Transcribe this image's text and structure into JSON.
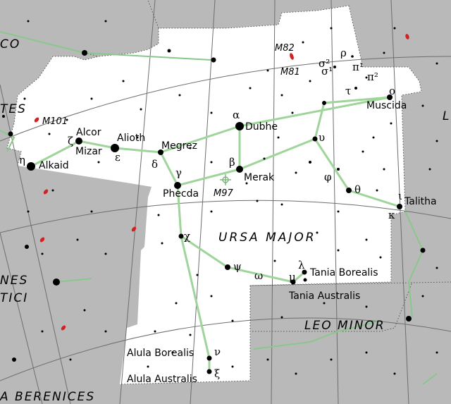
{
  "constellation": {
    "name": "URSA MAJOR"
  },
  "neighbors": [
    {
      "name": "LEO MINOR"
    },
    {
      "name": "CO"
    },
    {
      "name": "TES"
    },
    {
      "name": "NES"
    },
    {
      "name": "TICI"
    },
    {
      "name": "A BERENICES"
    },
    {
      "name": "L"
    }
  ],
  "stars": [
    {
      "name": "Dubhe",
      "greek": "α"
    },
    {
      "name": "Merak",
      "greek": "β"
    },
    {
      "name": "Phecda",
      "greek": "γ"
    },
    {
      "name": "Megrez",
      "greek": "δ"
    },
    {
      "name": "Alioth",
      "greek": "ε"
    },
    {
      "name": "Mizar",
      "greek": "ζ"
    },
    {
      "name": "Alcor",
      "greek": ""
    },
    {
      "name": "Alkaid",
      "greek": "η"
    },
    {
      "name": "Muscida",
      "greek": "ο"
    },
    {
      "name": "Talitha",
      "greek": "ι"
    },
    {
      "name": "Tania Borealis",
      "greek": "λ"
    },
    {
      "name": "Tania Australis",
      "greek": "μ"
    },
    {
      "name": "Alula Borealis",
      "greek": "ν"
    },
    {
      "name": "Alula Australis",
      "greek": "ξ"
    }
  ],
  "greek_labels": {
    "theta": "θ",
    "kappa": "κ",
    "upsilon": "υ",
    "phi": "φ",
    "chi": "χ",
    "psi": "ψ",
    "omega": "ω",
    "tau": "τ",
    "sigma2": "σ²",
    "sigma1": "σ¹",
    "rho": "ρ",
    "pi1": "π¹",
    "pi2": "π²"
  },
  "deep_sky": [
    {
      "name": "M82"
    },
    {
      "name": "M81"
    },
    {
      "name": "M101"
    },
    {
      "name": "M97"
    }
  ],
  "colors": {
    "background": "#b9b9b9",
    "constellation_area": "#ffffff",
    "stick_lines": "#9fd49a",
    "grid_lines": "#6e6e6e",
    "border_dots": "#555555",
    "galaxy": "#d62020"
  }
}
